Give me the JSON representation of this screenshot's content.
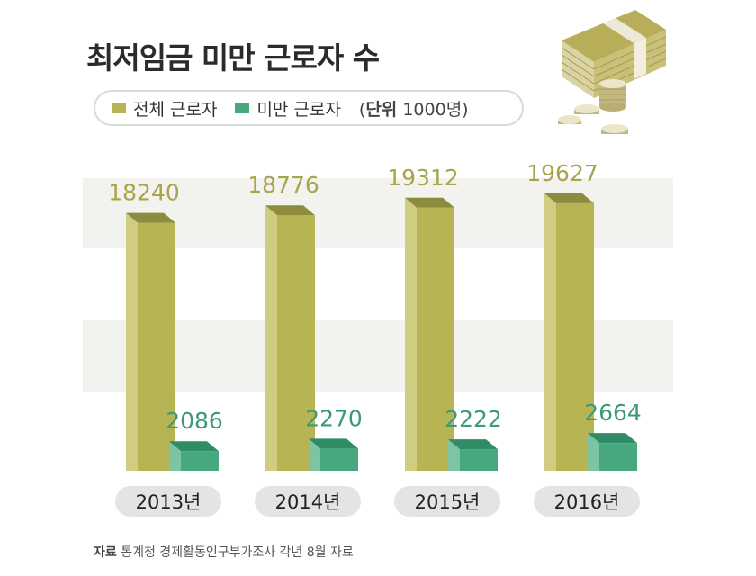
{
  "title": "최저임금 미만 근로자 수",
  "legend": {
    "series1": "전체 근로자",
    "series2": "미만 근로자",
    "unit_prefix": "(",
    "unit_bold": "단위",
    "unit_rest": " 1000명)"
  },
  "source": {
    "label": "자료",
    "text": " 통계청 경제활동인구부가조사 각년 8월 자료"
  },
  "colors": {
    "total_front": "#b7b454",
    "total_side": "#d0cd82",
    "total_top": "#8d8b3e",
    "total_text": "#a8a44a",
    "under_front": "#47a880",
    "under_side": "#7dc4a4",
    "under_top": "#2f8c66",
    "under_text": "#3d9a78"
  },
  "chart_data": {
    "type": "bar",
    "categories": [
      "2013년",
      "2014년",
      "2015년",
      "2016년"
    ],
    "series": [
      {
        "name": "전체 근로자",
        "values": [
          18240,
          18776,
          19312,
          19627
        ]
      },
      {
        "name": "미만 근로자",
        "values": [
          2086,
          2270,
          2222,
          2664
        ]
      }
    ],
    "title": "최저임금 미만 근로자 수",
    "xlabel": "",
    "ylabel": "",
    "unit": "1000명",
    "grid": false,
    "legend": "top-left"
  }
}
